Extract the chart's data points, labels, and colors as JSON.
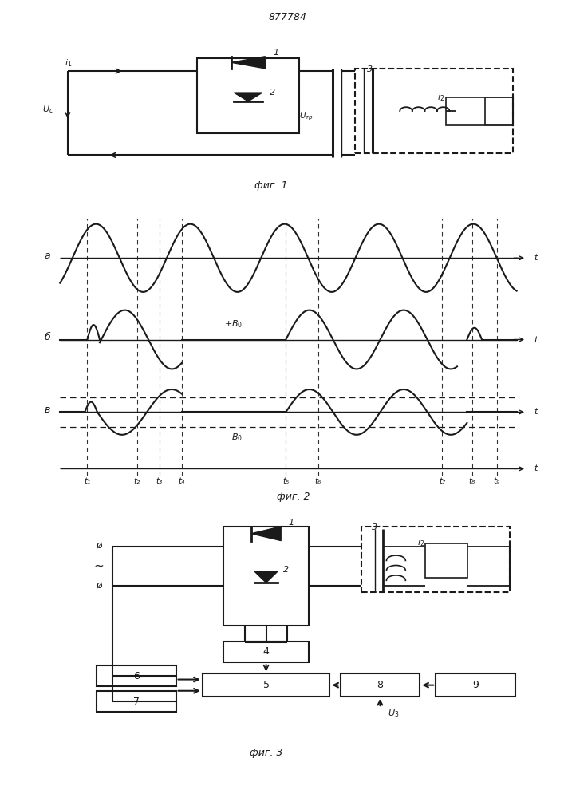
{
  "title": "877784",
  "fig1_caption": "фиг. 1",
  "fig2_caption": "фиг. 2",
  "fig3_caption": "фиг. 3",
  "line_color": "#1a1a1a",
  "time_labels": [
    "t₁",
    "t₂",
    "t₃",
    "t₄",
    "t₅",
    "t₆",
    "t₇",
    "t₈",
    "t₉"
  ]
}
